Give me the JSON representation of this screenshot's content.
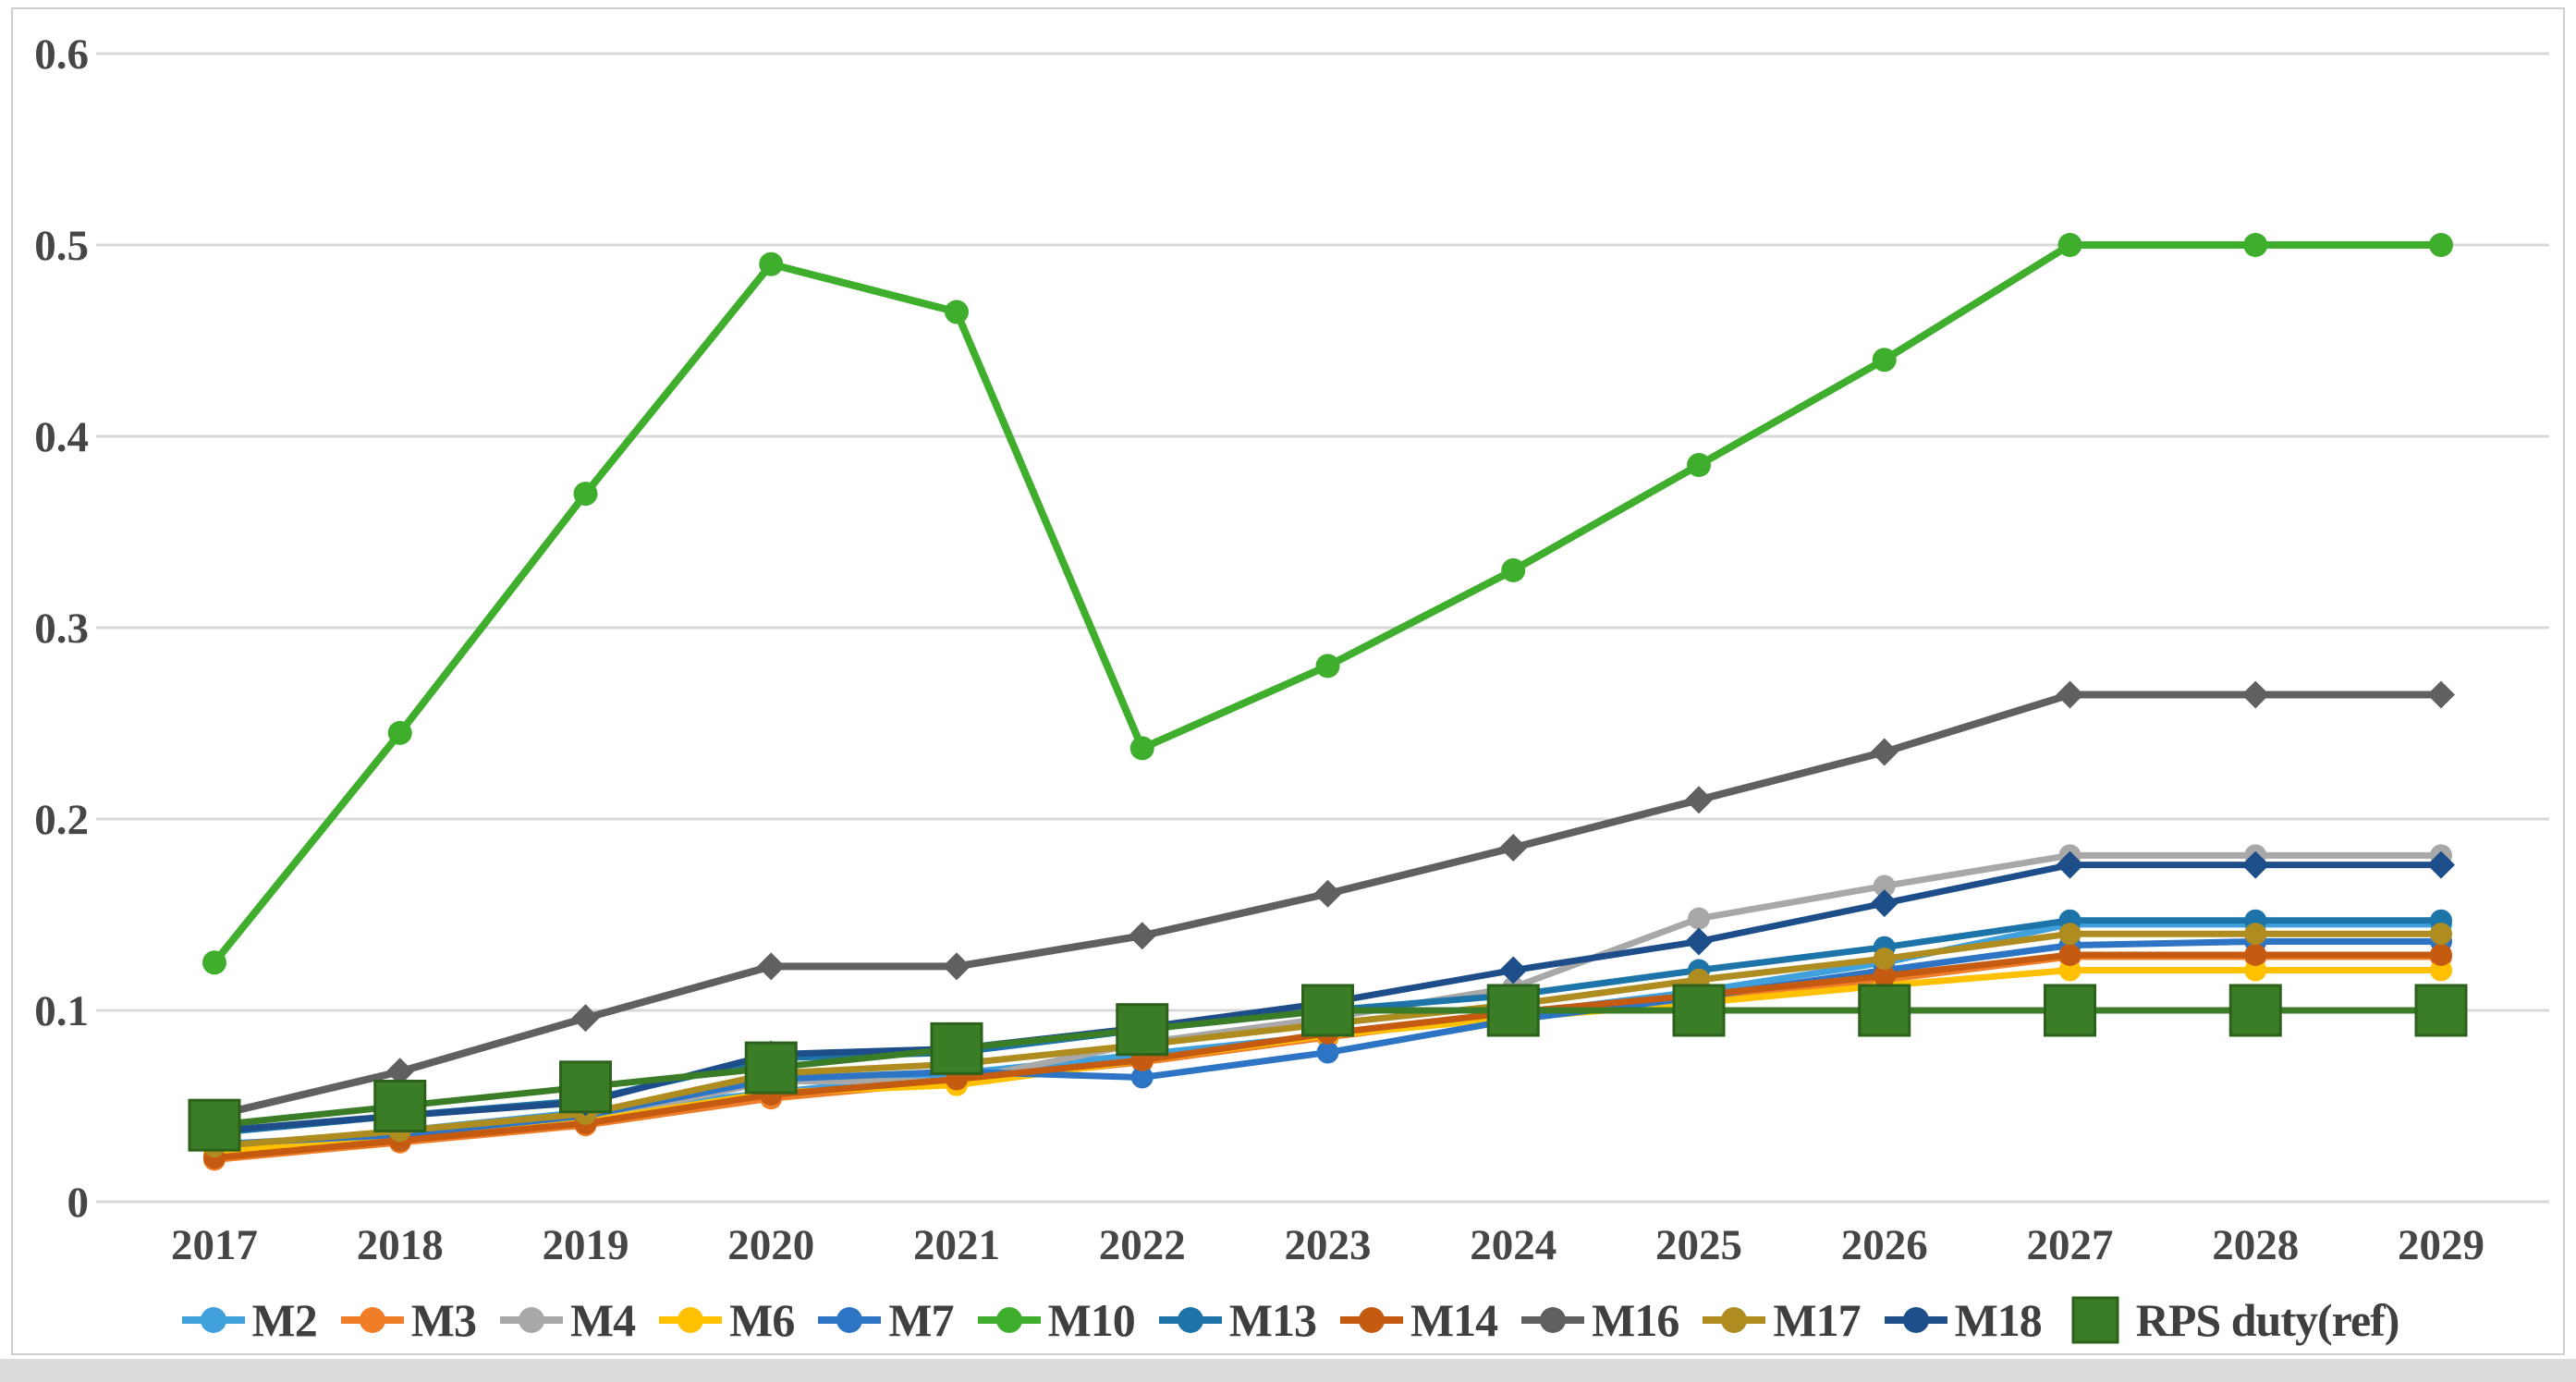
{
  "chart_data": {
    "type": "line",
    "x": [
      "2017",
      "2018",
      "2019",
      "2020",
      "2021",
      "2022",
      "2023",
      "2024",
      "2025",
      "2026",
      "2027",
      "2028",
      "2029"
    ],
    "ylim": [
      0,
      0.6
    ],
    "yticks": [
      "0",
      "0.1",
      "0.2",
      "0.3",
      "0.4",
      "0.5",
      "0.6"
    ],
    "grid": "horizontal",
    "legend_position": "bottom",
    "colors": {
      "grid": "#d9d9d9",
      "axis_text": "#464646",
      "legend_text": "#3f3f3f",
      "frame": "#cfcfcf"
    },
    "series": [
      {
        "name": "M2",
        "color": "#3fa0dc",
        "marker": "circle",
        "values": [
          0.027,
          0.037,
          0.047,
          0.057,
          0.067,
          0.077,
          0.087,
          0.098,
          0.11,
          0.125,
          0.145,
          0.145,
          0.145
        ]
      },
      {
        "name": "M3",
        "color": "#f07e28",
        "marker": "circle",
        "values": [
          0.022,
          0.031,
          0.04,
          0.054,
          0.063,
          0.073,
          0.086,
          0.098,
          0.106,
          0.116,
          0.128,
          0.128,
          0.128
        ]
      },
      {
        "name": "M4",
        "color": "#a8a8a8",
        "marker": "circle",
        "values": [
          0.024,
          0.033,
          0.043,
          0.063,
          0.063,
          0.083,
          0.096,
          0.112,
          0.148,
          0.165,
          0.181,
          0.181,
          0.181
        ]
      },
      {
        "name": "M6",
        "color": "#ffc000",
        "marker": "circle",
        "values": [
          0.026,
          0.033,
          0.042,
          0.057,
          0.061,
          0.074,
          0.087,
          0.096,
          0.104,
          0.113,
          0.121,
          0.121,
          0.121
        ]
      },
      {
        "name": "M7",
        "color": "#2d74c4",
        "marker": "circle",
        "values": [
          0.03,
          0.035,
          0.045,
          0.064,
          0.068,
          0.065,
          0.078,
          0.095,
          0.107,
          0.121,
          0.134,
          0.136,
          0.136
        ]
      },
      {
        "name": "M10",
        "color": "#3fae2c",
        "marker": "circle",
        "values": [
          0.125,
          0.245,
          0.37,
          0.49,
          0.465,
          0.237,
          0.28,
          0.33,
          0.385,
          0.44,
          0.5,
          0.5,
          0.5
        ]
      },
      {
        "name": "M13",
        "color": "#1c74a8",
        "marker": "circle",
        "values": [
          0.036,
          0.045,
          0.053,
          0.075,
          0.078,
          0.09,
          0.1,
          0.108,
          0.121,
          0.133,
          0.147,
          0.147,
          0.147
        ]
      },
      {
        "name": "M14",
        "color": "#c55a11",
        "marker": "circle",
        "values": [
          0.023,
          0.032,
          0.041,
          0.056,
          0.064,
          0.074,
          0.088,
          0.099,
          0.108,
          0.118,
          0.129,
          0.129,
          0.129
        ]
      },
      {
        "name": "M16",
        "color": "#606060",
        "marker": "diamond",
        "values": [
          0.045,
          0.068,
          0.096,
          0.123,
          0.123,
          0.139,
          0.161,
          0.185,
          0.21,
          0.235,
          0.265,
          0.265,
          0.265
        ]
      },
      {
        "name": "M17",
        "color": "#af8c1f",
        "marker": "circle",
        "values": [
          0.029,
          0.037,
          0.046,
          0.067,
          0.072,
          0.082,
          0.093,
          0.103,
          0.116,
          0.127,
          0.14,
          0.14,
          0.14
        ]
      },
      {
        "name": "M18",
        "color": "#1d4e89",
        "marker": "diamond",
        "values": [
          0.037,
          0.045,
          0.052,
          0.077,
          0.08,
          0.091,
          0.104,
          0.121,
          0.136,
          0.156,
          0.176,
          0.176,
          0.176
        ]
      },
      {
        "name": "RPS duty(ref)",
        "color": "#3a7d26",
        "marker": "square",
        "values": [
          0.04,
          0.05,
          0.06,
          0.07,
          0.08,
          0.09,
          0.1,
          0.1,
          0.1,
          0.1,
          0.1,
          0.1,
          0.1
        ]
      }
    ]
  }
}
